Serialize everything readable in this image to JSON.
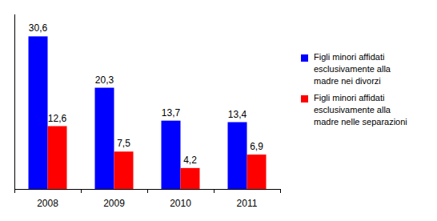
{
  "chart_data": {
    "type": "bar",
    "categories": [
      "2008",
      "2009",
      "2010",
      "2011"
    ],
    "series": [
      {
        "name": "Figli minori affidati esclusivamente alla madre nei divorzi",
        "color": "#0000ff",
        "values": [
          30.6,
          20.3,
          13.7,
          13.4
        ],
        "value_labels": [
          "30,6",
          "20,3",
          "13,7",
          "13,4"
        ]
      },
      {
        "name": "Figli minori affidati esclusivamente alla madre nelle separazioni",
        "color": "#ff0000",
        "values": [
          12.6,
          7.5,
          4.2,
          6.9
        ],
        "value_labels": [
          "12,6",
          "7,5",
          "4,2",
          "6,9"
        ]
      }
    ],
    "ylim": [
      0,
      35
    ],
    "data_labels": true,
    "tick_labels": "x",
    "legend": "right",
    "grid": false
  }
}
